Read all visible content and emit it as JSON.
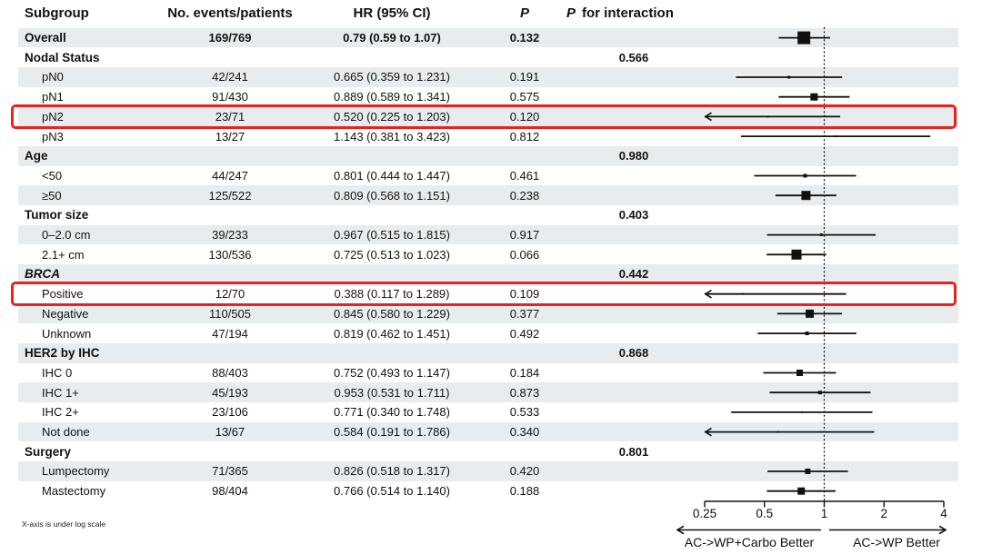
{
  "header": {
    "subgroup": "Subgroup",
    "events": "No. events/patients",
    "hr": "HR (95% CI)",
    "p": "P",
    "p_interaction_p": "P",
    "p_interaction_text": "for interaction"
  },
  "footnote": "X-axis is under log scale",
  "colors": {
    "band": "#e8ecee",
    "highlight_red": "#e8231d",
    "marker_black": "#111111"
  },
  "chart_data": {
    "type": "forest",
    "x_scale": "log",
    "xlim": [
      0.25,
      4
    ],
    "reference_line": 1,
    "axis_ticks": [
      0.25,
      0.5,
      1,
      2,
      4
    ],
    "axis_tick_labels": [
      "0.25",
      "0.5",
      "1",
      "2",
      "4"
    ],
    "left_direction_label": "AC->WP+Carbo Better",
    "right_direction_label": "AC->WP Better",
    "rows": [
      {
        "label": "Overall",
        "type": "data",
        "indent": 0,
        "bold": true,
        "events": "169/769",
        "hr_text": "0.79 (0.59 to 1.07)",
        "p": "0.132",
        "est": 0.79,
        "lo": 0.59,
        "hi": 1.07,
        "n_events": 169
      },
      {
        "label": "Nodal Status",
        "type": "heading",
        "p_interaction": "0.566"
      },
      {
        "label": "pN0",
        "type": "data",
        "indent": 1,
        "events": "42/241",
        "hr_text": "0.665 (0.359 to 1.231)",
        "p": "0.191",
        "est": 0.665,
        "lo": 0.359,
        "hi": 1.231,
        "n_events": 42
      },
      {
        "label": "pN1",
        "type": "data",
        "indent": 1,
        "events": "91/430",
        "hr_text": "0.889 (0.589 to 1.341)",
        "p": "0.575",
        "est": 0.889,
        "lo": 0.589,
        "hi": 1.341,
        "n_events": 91
      },
      {
        "label": "pN2",
        "type": "data",
        "indent": 1,
        "highlight": true,
        "events": "23/71",
        "hr_text": "0.520 (0.225 to 1.203)",
        "p": "0.120",
        "est": 0.52,
        "lo": 0.225,
        "hi": 1.203,
        "n_events": 23
      },
      {
        "label": "pN3",
        "type": "data",
        "indent": 1,
        "events": "13/27",
        "hr_text": "1.143 (0.381 to 3.423)",
        "p": "0.812",
        "est": 1.143,
        "lo": 0.381,
        "hi": 3.423,
        "n_events": 13
      },
      {
        "label": "Age",
        "type": "heading",
        "p_interaction": "0.980"
      },
      {
        "label": "<50",
        "type": "data",
        "indent": 1,
        "events": "44/247",
        "hr_text": "0.801 (0.444 to 1.447)",
        "p": "0.461",
        "est": 0.801,
        "lo": 0.444,
        "hi": 1.447,
        "n_events": 44
      },
      {
        "label": "≥50",
        "type": "data",
        "indent": 1,
        "events": "125/522",
        "hr_text": "0.809 (0.568 to 1.151)",
        "p": "0.238",
        "est": 0.809,
        "lo": 0.568,
        "hi": 1.151,
        "n_events": 125
      },
      {
        "label": "Tumor size",
        "type": "heading",
        "p_interaction": "0.403"
      },
      {
        "label": "0–2.0 cm",
        "type": "data",
        "indent": 1,
        "events": "39/233",
        "hr_text": "0.967 (0.515 to 1.815)",
        "p": "0.917",
        "est": 0.967,
        "lo": 0.515,
        "hi": 1.815,
        "n_events": 39
      },
      {
        "label": "2.1+ cm",
        "type": "data",
        "indent": 1,
        "events": "130/536",
        "hr_text": "0.725 (0.513 to 1.023)",
        "p": "0.066",
        "est": 0.725,
        "lo": 0.513,
        "hi": 1.023,
        "n_events": 130
      },
      {
        "label": "BRCA",
        "type": "heading",
        "italic": true,
        "p_interaction": "0.442"
      },
      {
        "label": "Positive",
        "type": "data",
        "indent": 1,
        "highlight": true,
        "events": "12/70",
        "hr_text": "0.388 (0.117 to 1.289)",
        "p": "0.109",
        "est": 0.388,
        "lo": 0.117,
        "hi": 1.289,
        "n_events": 12
      },
      {
        "label": "Negative",
        "type": "data",
        "indent": 1,
        "events": "110/505",
        "hr_text": "0.845 (0.580 to 1.229)",
        "p": "0.377",
        "est": 0.845,
        "lo": 0.58,
        "hi": 1.229,
        "n_events": 110
      },
      {
        "label": "Unknown",
        "type": "data",
        "indent": 1,
        "events": "47/194",
        "hr_text": "0.819 (0.462 to 1.451)",
        "p": "0.492",
        "est": 0.819,
        "lo": 0.462,
        "hi": 1.451,
        "n_events": 47
      },
      {
        "label": "HER2 by IHC",
        "type": "heading",
        "p_interaction": "0.868"
      },
      {
        "label": "IHC 0",
        "type": "data",
        "indent": 1,
        "events": "88/403",
        "hr_text": "0.752 (0.493 to 1.147)",
        "p": "0.184",
        "est": 0.752,
        "lo": 0.493,
        "hi": 1.147,
        "n_events": 88
      },
      {
        "label": "IHC 1+",
        "type": "data",
        "indent": 1,
        "events": "45/193",
        "hr_text": "0.953 (0.531 to 1.711)",
        "p": "0.873",
        "est": 0.953,
        "lo": 0.531,
        "hi": 1.711,
        "n_events": 45
      },
      {
        "label": "IHC 2+",
        "type": "data",
        "indent": 1,
        "events": "23/106",
        "hr_text": "0.771 (0.340 to 1.748)",
        "p": "0.533",
        "est": 0.771,
        "lo": 0.34,
        "hi": 1.748,
        "n_events": 23
      },
      {
        "label": "Not done",
        "type": "data",
        "indent": 1,
        "events": "13/67",
        "hr_text": "0.584 (0.191 to 1.786)",
        "p": "0.340",
        "est": 0.584,
        "lo": 0.191,
        "hi": 1.786,
        "n_events": 13
      },
      {
        "label": "Surgery",
        "type": "heading",
        "p_interaction": "0.801"
      },
      {
        "label": "Lumpectomy",
        "type": "data",
        "indent": 1,
        "events": "71/365",
        "hr_text": "0.826 (0.518 to 1.317)",
        "p": "0.420",
        "est": 0.826,
        "lo": 0.518,
        "hi": 1.317,
        "n_events": 71
      },
      {
        "label": "Mastectomy",
        "type": "data",
        "indent": 1,
        "events": "98/404",
        "hr_text": "0.766 (0.514 to 1.140)",
        "p": "0.188",
        "est": 0.766,
        "lo": 0.514,
        "hi": 1.14,
        "n_events": 98
      }
    ]
  }
}
